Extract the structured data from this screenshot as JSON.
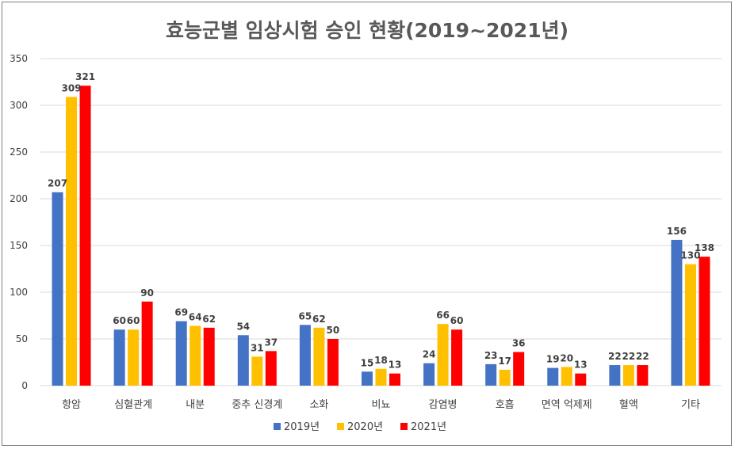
{
  "chart_data": {
    "type": "bar",
    "title": "효능군별 임상시험 승인 현황(2019~2021년)",
    "categories": [
      "항암",
      "심혈관계",
      "내분",
      "중추 신경계",
      "소화",
      "비뇨",
      "감염병",
      "호흡",
      "면역 억제제",
      "혈액",
      "기타"
    ],
    "series": [
      {
        "name": "2019년",
        "color": "#4472c4",
        "values": [
          207,
          60,
          69,
          54,
          65,
          15,
          24,
          23,
          19,
          22,
          156
        ]
      },
      {
        "name": "2020년",
        "color": "#ffc000",
        "values": [
          309,
          60,
          64,
          31,
          62,
          18,
          66,
          17,
          20,
          22,
          130
        ]
      },
      {
        "name": "2021년",
        "color": "#ff0000",
        "values": [
          321,
          90,
          62,
          37,
          50,
          13,
          60,
          36,
          13,
          22,
          138
        ]
      }
    ],
    "ylim": [
      0,
      350
    ],
    "yticks": [
      0,
      50,
      100,
      150,
      200,
      250,
      300,
      350
    ],
    "grid": true,
    "legend_position": "bottom"
  }
}
